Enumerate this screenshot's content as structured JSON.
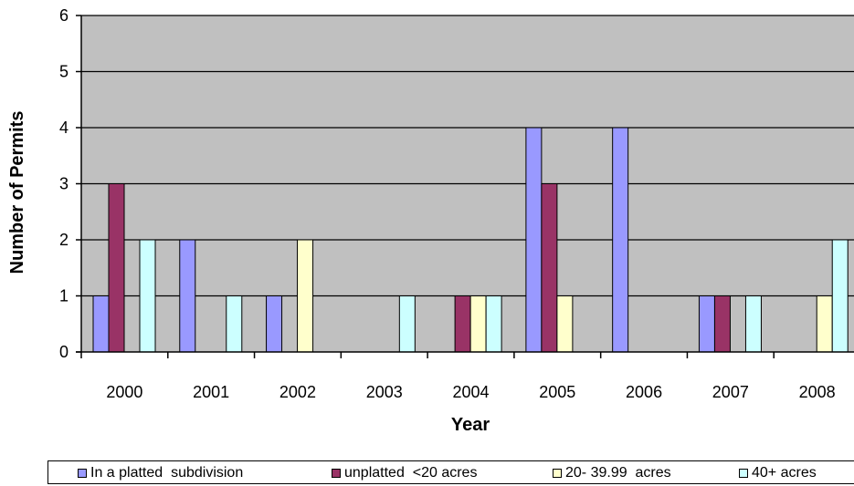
{
  "chart_data": {
    "type": "bar",
    "title": "",
    "xlabel": "Year",
    "ylabel": "Number of Permits",
    "categories": [
      "2000",
      "2001",
      "2002",
      "2003",
      "2004",
      "2005",
      "2006",
      "2007",
      "2008"
    ],
    "ylim": [
      0,
      6
    ],
    "yticks": [
      "0",
      "1",
      "2",
      "3",
      "4",
      "5",
      "6"
    ],
    "grid": true,
    "legend_position": "bottom",
    "series": [
      {
        "name": "In a platted  subdivision",
        "color": "#9999ff",
        "values": [
          1,
          2,
          1,
          0,
          0,
          4,
          4,
          1,
          0
        ]
      },
      {
        "name": "unplatted  <20 acres",
        "color": "#993366",
        "values": [
          3,
          0,
          0,
          0,
          1,
          3,
          0,
          1,
          0
        ]
      },
      {
        "name": "20- 39.99  acres",
        "color": "#ffffcc",
        "values": [
          0,
          0,
          2,
          0,
          1,
          1,
          0,
          0,
          1
        ]
      },
      {
        "name": "40+ acres",
        "color": "#ccffff",
        "values": [
          2,
          1,
          0,
          1,
          1,
          0,
          0,
          1,
          2
        ]
      }
    ],
    "plot_background": "#c0c0c0"
  }
}
